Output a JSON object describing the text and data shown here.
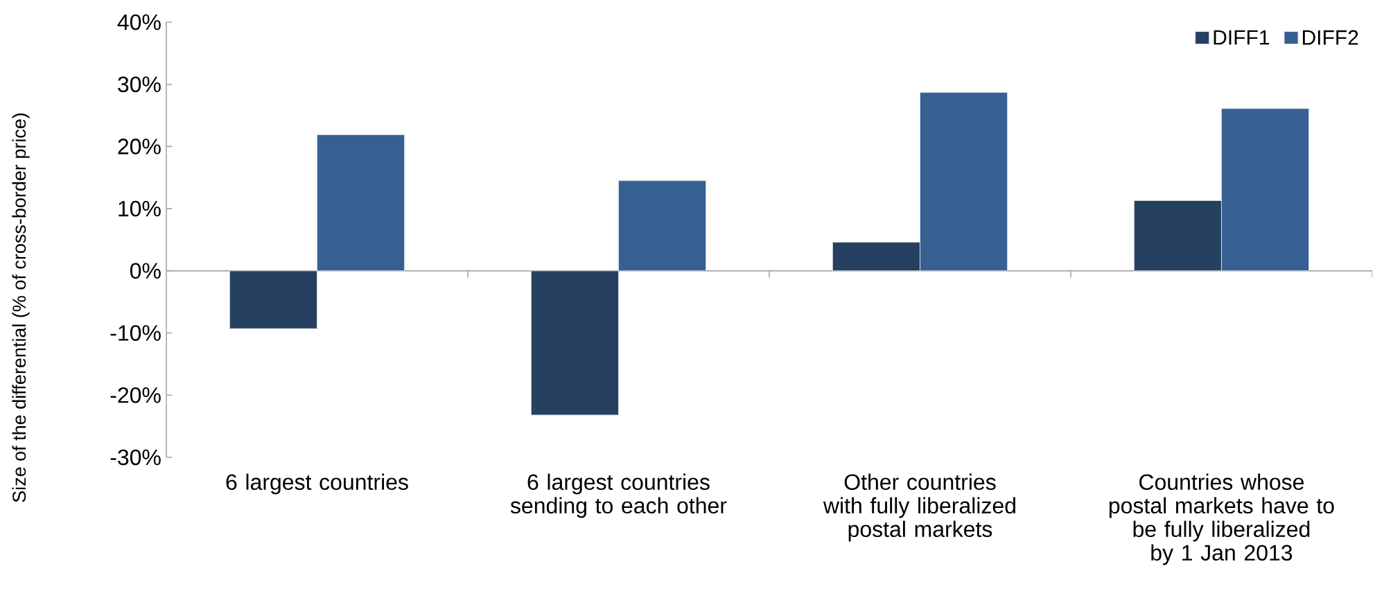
{
  "chart_data": {
    "type": "bar",
    "ylabel": "Size of the differential (% of cross-border price)",
    "categories": [
      "6 largest countries",
      "6 largest countries sending to each other",
      "Other countries with fully liberalized postal markets",
      "Countries whose postal markets have to be fully liberalized by 1 Jan 2013"
    ],
    "series": [
      {
        "name": "DIFF1",
        "color": "#264061",
        "values": [
          -9.3,
          -23.2,
          4.6,
          11.3
        ]
      },
      {
        "name": "DIFF2",
        "color": "#366092",
        "values": [
          21.9,
          14.5,
          28.7,
          26.1
        ]
      }
    ],
    "ylim": [
      -30,
      40
    ],
    "yticks": [
      {
        "value": -30,
        "label": "-30%"
      },
      {
        "value": -20,
        "label": "-20%"
      },
      {
        "value": -10,
        "label": "-10%"
      },
      {
        "value": 0,
        "label": "0%"
      },
      {
        "value": 10,
        "label": "10%"
      },
      {
        "value": 20,
        "label": "20%"
      },
      {
        "value": 30,
        "label": "30%"
      },
      {
        "value": 40,
        "label": "40%"
      }
    ],
    "legend": "top right"
  }
}
